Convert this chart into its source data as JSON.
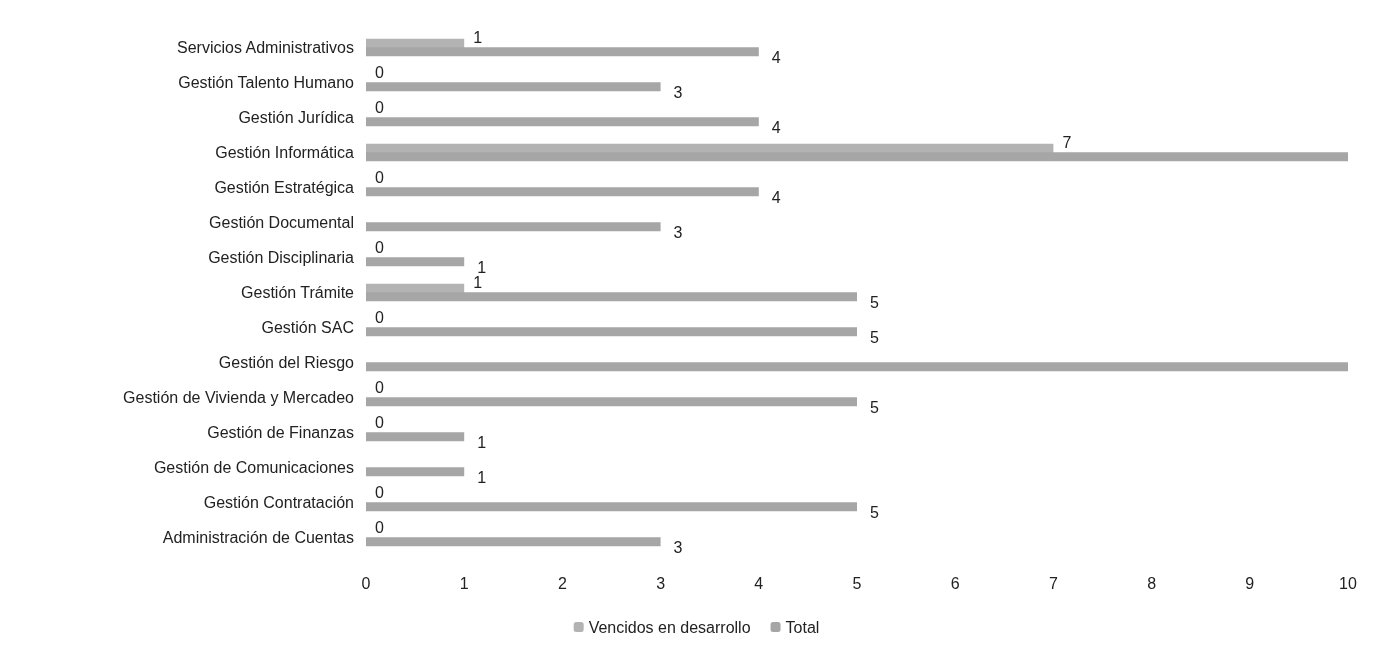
{
  "chart_data": {
    "type": "bar",
    "orientation": "horizontal",
    "categories": [
      "Servicios Administrativos",
      "Gestión Talento Humano",
      "Gestión Jurídica",
      "Gestión Informática",
      "Gestión Estratégica",
      "Gestión Documental",
      "Gestión Disciplinaria",
      "Gestión Trámite",
      "Gestión SAC",
      "Gestión del Riesgo",
      "Gestión de Vivienda y Mercadeo",
      "Gestión de Finanzas",
      "Gestión de Comunicaciones",
      "Gestión Contratación",
      "Administración de Cuentas"
    ],
    "series": [
      {
        "name": "Vencidos en desarrollo",
        "color": "#b3b3b3",
        "values": [
          1,
          0,
          0,
          7,
          0,
          null,
          0,
          1,
          0,
          null,
          0,
          0,
          null,
          0,
          0
        ],
        "value_labels": [
          "1",
          "0",
          "0",
          "7",
          "0",
          null,
          "0",
          "1",
          "0",
          null,
          "0",
          "0",
          null,
          "0",
          "0"
        ]
      },
      {
        "name": "Total",
        "color": "#a6a6a6",
        "values": [
          4,
          3,
          4,
          10,
          4,
          3,
          1,
          5,
          5,
          10,
          5,
          1,
          1,
          5,
          3
        ],
        "value_labels": [
          "4",
          "3",
          "4",
          null,
          "4",
          "3",
          "1",
          "5",
          "5",
          null,
          "5",
          "1",
          "1",
          "5",
          "3"
        ]
      }
    ],
    "xlim": [
      0,
      10
    ],
    "xticks": [
      0,
      1,
      2,
      3,
      4,
      5,
      6,
      7,
      8,
      9,
      10
    ],
    "grid": false,
    "legend": "bottom"
  }
}
